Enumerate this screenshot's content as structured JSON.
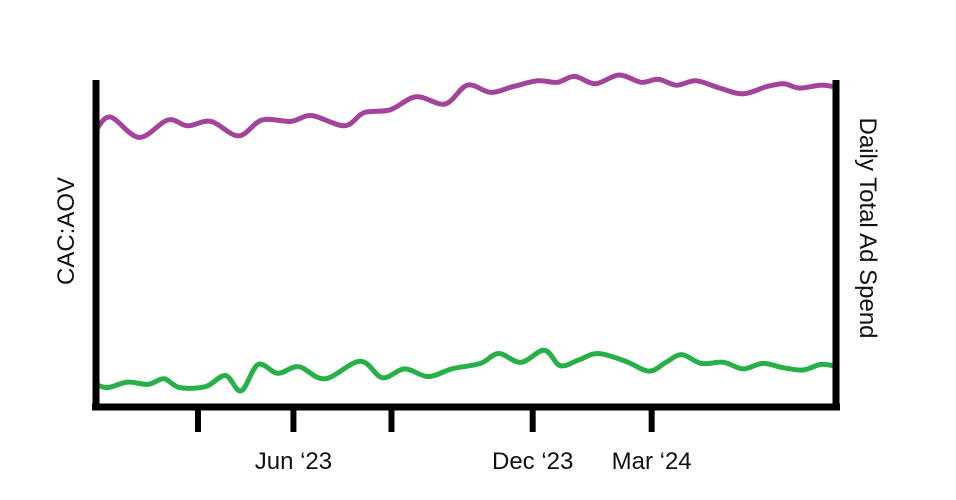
{
  "chart_data": {
    "type": "line",
    "title": "",
    "xlabel": "",
    "ylabel_left": "CAC:AOV",
    "ylabel_right": "Daily Total Ad Spend",
    "x_tick_labels": [
      "",
      "Jun ‘23",
      "",
      "Dec ‘23",
      "Mar ‘24"
    ],
    "x_tick_dates": [
      "2023-03-20",
      "2023-06-01",
      "2023-08-15",
      "2023-12-01",
      "2024-03-01"
    ],
    "xlim": [
      "2023-01-01",
      "2024-07-20"
    ],
    "grid": false,
    "legend": "none",
    "series": [
      {
        "axis": "left",
        "color": "#a3449c",
        "points": [
          [
            "2023-01-01",
            0.62
          ],
          [
            "2023-01-12",
            0.71
          ],
          [
            "2023-02-03",
            0.57
          ],
          [
            "2023-02-25",
            0.69
          ],
          [
            "2023-03-12",
            0.65
          ],
          [
            "2023-03-30",
            0.68
          ],
          [
            "2023-04-20",
            0.58
          ],
          [
            "2023-05-08",
            0.69
          ],
          [
            "2023-05-30",
            0.68
          ],
          [
            "2023-06-15",
            0.72
          ],
          [
            "2023-07-10",
            0.65
          ],
          [
            "2023-07-25",
            0.74
          ],
          [
            "2023-08-14",
            0.76
          ],
          [
            "2023-09-03",
            0.85
          ],
          [
            "2023-09-25",
            0.8
          ],
          [
            "2023-10-12",
            0.93
          ],
          [
            "2023-10-30",
            0.88
          ],
          [
            "2023-11-16",
            0.92
          ],
          [
            "2023-12-05",
            0.96
          ],
          [
            "2023-12-20",
            0.95
          ],
          [
            "2024-01-02",
            0.99
          ],
          [
            "2024-01-18",
            0.94
          ],
          [
            "2024-02-05",
            1.0
          ],
          [
            "2024-02-22",
            0.95
          ],
          [
            "2024-03-06",
            0.97
          ],
          [
            "2024-03-20",
            0.93
          ],
          [
            "2024-04-04",
            0.96
          ],
          [
            "2024-04-22",
            0.91
          ],
          [
            "2024-05-10",
            0.87
          ],
          [
            "2024-05-28",
            0.92
          ],
          [
            "2024-06-10",
            0.94
          ],
          [
            "2024-06-22",
            0.91
          ],
          [
            "2024-07-08",
            0.93
          ],
          [
            "2024-07-18",
            0.92
          ]
        ]
      },
      {
        "axis": "right",
        "color": "#27b048",
        "points": [
          [
            "2023-01-01",
            0.07
          ],
          [
            "2023-01-10",
            0.04
          ],
          [
            "2023-01-25",
            0.09
          ],
          [
            "2023-02-10",
            0.07
          ],
          [
            "2023-02-22",
            0.12
          ],
          [
            "2023-03-06",
            0.04
          ],
          [
            "2023-03-26",
            0.05
          ],
          [
            "2023-04-10",
            0.15
          ],
          [
            "2023-04-22",
            0.01
          ],
          [
            "2023-05-05",
            0.25
          ],
          [
            "2023-05-20",
            0.17
          ],
          [
            "2023-06-05",
            0.23
          ],
          [
            "2023-06-25",
            0.12
          ],
          [
            "2023-07-22",
            0.28
          ],
          [
            "2023-08-08",
            0.13
          ],
          [
            "2023-08-25",
            0.21
          ],
          [
            "2023-09-12",
            0.14
          ],
          [
            "2023-09-30",
            0.21
          ],
          [
            "2023-10-22",
            0.26
          ],
          [
            "2023-11-05",
            0.35
          ],
          [
            "2023-11-22",
            0.27
          ],
          [
            "2023-12-10",
            0.38
          ],
          [
            "2023-12-22",
            0.24
          ],
          [
            "2024-01-05",
            0.29
          ],
          [
            "2024-01-20",
            0.35
          ],
          [
            "2024-02-10",
            0.28
          ],
          [
            "2024-02-28",
            0.19
          ],
          [
            "2024-03-12",
            0.27
          ],
          [
            "2024-03-24",
            0.34
          ],
          [
            "2024-04-08",
            0.26
          ],
          [
            "2024-04-25",
            0.27
          ],
          [
            "2024-05-10",
            0.21
          ],
          [
            "2024-05-25",
            0.26
          ],
          [
            "2024-06-10",
            0.22
          ],
          [
            "2024-06-25",
            0.2
          ],
          [
            "2024-07-08",
            0.25
          ],
          [
            "2024-07-18",
            0.24
          ]
        ]
      }
    ]
  }
}
